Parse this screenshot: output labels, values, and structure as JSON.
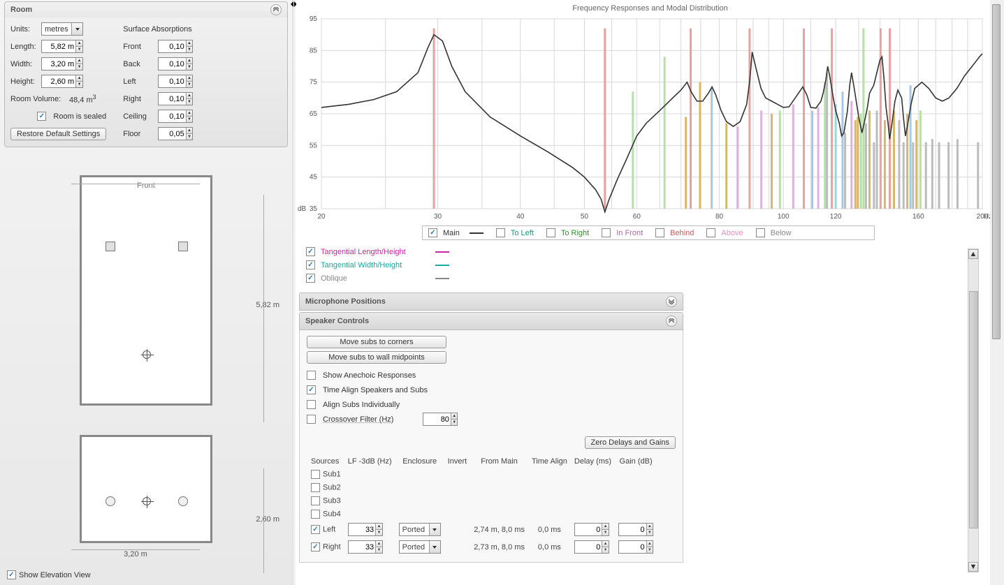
{
  "room_panel": {
    "title": "Room",
    "units_label": "Units:",
    "units_value": "metres",
    "length_label": "Length:",
    "length_value": "5,82 m",
    "width_label": "Width:",
    "width_value": "3,20 m",
    "height_label": "Height:",
    "height_value": "2,60 m",
    "volume_label": "Room Volume:",
    "volume_value": "48,4 m",
    "volume_sup": "3",
    "sealed_label": "Room is sealed",
    "restore_btn": "Restore Default Settings",
    "absorptions_label": "Surface Absorptions",
    "front_label": "Front",
    "front_val": "0,10",
    "back_label": "Back",
    "back_val": "0,10",
    "left_label": "Left",
    "left_val": "0,10",
    "right_label": "Right",
    "right_val": "0,10",
    "ceiling_label": "Ceiling",
    "ceiling_val": "0,10",
    "floor_label": "Floor",
    "floor_val": "0,05"
  },
  "diagram": {
    "top_width_label": "3,20 m",
    "right_length_label": "5,82 m",
    "bottom_width_label": "3,20 m",
    "elev_height_label": "2,60 m",
    "front_text": "Front"
  },
  "show_elev_label": "Show Elevation View",
  "chart": {
    "title": "Frequency Responses and Modal Distribution",
    "x_unit": "Hz",
    "y_unit": "dB",
    "xlim": [
      20,
      200
    ],
    "ylim": [
      35,
      95
    ],
    "yticks": [
      35,
      45,
      55,
      65,
      75,
      85,
      95
    ],
    "xticks_major": [
      20,
      30,
      40,
      50,
      60,
      80,
      100,
      120,
      160,
      200
    ],
    "response_curve": [
      [
        20,
        67
      ],
      [
        22,
        68
      ],
      [
        24,
        69.5
      ],
      [
        26,
        72
      ],
      [
        28,
        78
      ],
      [
        29,
        86
      ],
      [
        29.6,
        90
      ],
      [
        30.5,
        88
      ],
      [
        31.5,
        80
      ],
      [
        33,
        72
      ],
      [
        36,
        64
      ],
      [
        40,
        58
      ],
      [
        44,
        53
      ],
      [
        48,
        48
      ],
      [
        50,
        45
      ],
      [
        52,
        41
      ],
      [
        53,
        38
      ],
      [
        53.7,
        34
      ],
      [
        54.5,
        38
      ],
      [
        56,
        44
      ],
      [
        58,
        51
      ],
      [
        60,
        58
      ],
      [
        62,
        62
      ],
      [
        65,
        66
      ],
      [
        68,
        70
      ],
      [
        70,
        72.5
      ],
      [
        71.5,
        75
      ],
      [
        72.5,
        72
      ],
      [
        74,
        69
      ],
      [
        75.5,
        69
      ],
      [
        77,
        71.5
      ],
      [
        78,
        73.5
      ],
      [
        79,
        71
      ],
      [
        80.5,
        66
      ],
      [
        82,
        62.5
      ],
      [
        84,
        61
      ],
      [
        86,
        62.5
      ],
      [
        88,
        68
      ],
      [
        89,
        76
      ],
      [
        89.7,
        84.5
      ],
      [
        91,
        79
      ],
      [
        92.5,
        73
      ],
      [
        94,
        70
      ],
      [
        96,
        69
      ],
      [
        98,
        68
      ],
      [
        100,
        67
      ],
      [
        102,
        67.2
      ],
      [
        105,
        71
      ],
      [
        107,
        73.5
      ],
      [
        108.5,
        71
      ],
      [
        110,
        67
      ],
      [
        112,
        66.8
      ],
      [
        114,
        69
      ],
      [
        115,
        72
      ],
      [
        116,
        76
      ],
      [
        116.7,
        80
      ],
      [
        117.5,
        77
      ],
      [
        119,
        70
      ],
      [
        120,
        66
      ],
      [
        121.5,
        62
      ],
      [
        122.5,
        58
      ],
      [
        123.5,
        59
      ],
      [
        125,
        66
      ],
      [
        126,
        74
      ],
      [
        126.8,
        78
      ],
      [
        128,
        73
      ],
      [
        130,
        64
      ],
      [
        131.5,
        59
      ],
      [
        132.5,
        62
      ],
      [
        134,
        67
      ],
      [
        135,
        71.5
      ],
      [
        137,
        74
      ],
      [
        140,
        82
      ],
      [
        141,
        83
      ],
      [
        142,
        76
      ],
      [
        143,
        67
      ],
      [
        144,
        62
      ],
      [
        144.8,
        57
      ],
      [
        146,
        62
      ],
      [
        147.5,
        69
      ],
      [
        149,
        72.5
      ],
      [
        151,
        70
      ],
      [
        152,
        63.5
      ],
      [
        153,
        58
      ],
      [
        154,
        61
      ],
      [
        156,
        68
      ],
      [
        158,
        73
      ],
      [
        162,
        75
      ],
      [
        166,
        73
      ],
      [
        170,
        70
      ],
      [
        174,
        69
      ],
      [
        178,
        70
      ],
      [
        183,
        73
      ],
      [
        188,
        77
      ],
      [
        193,
        80
      ],
      [
        198,
        83
      ],
      [
        200,
        84
      ]
    ],
    "modal_bars": [
      {
        "x": 29.6,
        "y": 92,
        "color": "#e8a0a0"
      },
      {
        "x": 53.7,
        "y": 92,
        "color": "#e8a0a0"
      },
      {
        "x": 59.2,
        "y": 72,
        "color": "#b6e0a8"
      },
      {
        "x": 66.1,
        "y": 83,
        "color": "#b6e0a8"
      },
      {
        "x": 71.2,
        "y": 64,
        "color": "#d7b86a"
      },
      {
        "x": 72.4,
        "y": 92,
        "color": "#e8a0a0"
      },
      {
        "x": 74.8,
        "y": 75,
        "color": "#d7b86a"
      },
      {
        "x": 77.9,
        "y": 73,
        "color": "#a7c7e6"
      },
      {
        "x": 82.0,
        "y": 62,
        "color": "#d7b86a"
      },
      {
        "x": 85.3,
        "y": 61,
        "color": "#e0b0e0"
      },
      {
        "x": 88.9,
        "y": 92,
        "color": "#e8a0a0"
      },
      {
        "x": 92.6,
        "y": 66,
        "color": "#e0b0e0"
      },
      {
        "x": 96.0,
        "y": 65,
        "color": "#d7b86a"
      },
      {
        "x": 98.8,
        "y": 66,
        "color": "#b6e0a8"
      },
      {
        "x": 103.5,
        "y": 68,
        "color": "#e0b0e0"
      },
      {
        "x": 107.4,
        "y": 92,
        "color": "#e8a0a0"
      },
      {
        "x": 110.6,
        "y": 66,
        "color": "#a7c7e6"
      },
      {
        "x": 112.9,
        "y": 67,
        "color": "#e0b0e0"
      },
      {
        "x": 115.6,
        "y": 75,
        "color": "#b6e0a8"
      },
      {
        "x": 116.4,
        "y": 78,
        "color": "#bcbcbc"
      },
      {
        "x": 118.4,
        "y": 92,
        "color": "#e8a0a0"
      },
      {
        "x": 120.0,
        "y": 68,
        "color": "#9ad7d7"
      },
      {
        "x": 122.9,
        "y": 72,
        "color": "#a7c7e6"
      },
      {
        "x": 124.0,
        "y": 59,
        "color": "#bcbcbc"
      },
      {
        "x": 126.8,
        "y": 69,
        "color": "#e0b0e0"
      },
      {
        "x": 128.5,
        "y": 63,
        "color": "#d7b86a"
      },
      {
        "x": 129.6,
        "y": 64,
        "color": "#d7b86a"
      },
      {
        "x": 131.0,
        "y": 65,
        "color": "#b6e0a8"
      },
      {
        "x": 132.2,
        "y": 92,
        "color": "#b6e0a8"
      },
      {
        "x": 133.3,
        "y": 62,
        "color": "#bcbcbc"
      },
      {
        "x": 135.0,
        "y": 66,
        "color": "#d7b86a"
      },
      {
        "x": 137.1,
        "y": 56,
        "color": "#bcbcbc"
      },
      {
        "x": 138.5,
        "y": 66,
        "color": "#bcbcbc"
      },
      {
        "x": 140.3,
        "y": 92,
        "color": "#e8a0a0"
      },
      {
        "x": 142.4,
        "y": 63,
        "color": "#d7b86a"
      },
      {
        "x": 144.9,
        "y": 92,
        "color": "#e8a0a0"
      },
      {
        "x": 147.0,
        "y": 66,
        "color": "#d7b86a"
      },
      {
        "x": 149.7,
        "y": 63,
        "color": "#bcbcbc"
      },
      {
        "x": 152.0,
        "y": 56,
        "color": "#bcbcbc"
      },
      {
        "x": 154.0,
        "y": 65,
        "color": "#d7b86a"
      },
      {
        "x": 155.7,
        "y": 74,
        "color": "#a7c7e6"
      },
      {
        "x": 157.1,
        "y": 56,
        "color": "#bcbcbc"
      },
      {
        "x": 159.0,
        "y": 63,
        "color": "#d7b86a"
      },
      {
        "x": 161.2,
        "y": 66,
        "color": "#b6e0a8"
      },
      {
        "x": 164.3,
        "y": 56,
        "color": "#bcbcbc"
      },
      {
        "x": 168.0,
        "y": 57,
        "color": "#bcbcbc"
      },
      {
        "x": 172.0,
        "y": 56,
        "color": "#bcbcbc"
      },
      {
        "x": 177.8,
        "y": 56,
        "color": "#bcbcbc"
      },
      {
        "x": 183.4,
        "y": 57,
        "color": "#bcbcbc"
      },
      {
        "x": 197.0,
        "y": 56,
        "color": "#bcbcbc"
      }
    ],
    "curve_color": "#333333",
    "grid_color": "#d8d8d8",
    "background": "#ffffff"
  },
  "main_legend": {
    "items": [
      {
        "label": "Main",
        "color": "#333333",
        "checked": true,
        "style": "line"
      },
      {
        "label": "To Left",
        "color": "#16947a",
        "checked": false
      },
      {
        "label": "To Right",
        "color": "#2f8f2f",
        "checked": false
      },
      {
        "label": "In Front",
        "color": "#b06aa4",
        "checked": false
      },
      {
        "label": "Behind",
        "color": "#c75b5b",
        "checked": false
      },
      {
        "label": "Above",
        "color": "#e48fc0",
        "checked": false
      },
      {
        "label": "Below",
        "color": "#888888",
        "checked": false
      }
    ]
  },
  "ext_legend": {
    "items": [
      {
        "label": "Tangential Length/Height",
        "color": "#c726a4",
        "checked": true
      },
      {
        "label": "Tangential Width/Height",
        "color": "#18a9a1",
        "checked": true
      },
      {
        "label": "Oblique",
        "color": "#888888",
        "checked": true
      }
    ]
  },
  "mic_section_title": "Microphone Positions",
  "speaker_section": {
    "title": "Speaker Controls",
    "move_corners_btn": "Move subs to corners",
    "move_midpoints_btn": "Move subs to wall midpoints",
    "anechoic_label": "Show Anechoic Responses",
    "time_align_label": "Time Align Speakers and Subs",
    "align_indiv_label": "Align Subs Individually",
    "crossover_label": "Crossover Filter (Hz)",
    "crossover_val": "80",
    "zero_btn": "Zero Delays and Gains",
    "cols": {
      "sources": "Sources",
      "lf": "LF -3dB (Hz)",
      "enc": "Enclosure",
      "inv": "Invert",
      "from_main": "From Main",
      "ta": "Time Align",
      "delay": "Delay (ms)",
      "gain": "Gain (dB)"
    },
    "rows": [
      {
        "name": "Sub1",
        "checked": false
      },
      {
        "name": "Sub2",
        "checked": false
      },
      {
        "name": "Sub3",
        "checked": false
      },
      {
        "name": "Sub4",
        "checked": false
      },
      {
        "name": "Left",
        "checked": true,
        "lf": "33",
        "enc": "Ported",
        "from_main": "2,74 m, 8,0 ms",
        "ta": "0,0 ms",
        "delay": "0",
        "gain": "0"
      },
      {
        "name": "Right",
        "checked": true,
        "lf": "33",
        "enc": "Ported",
        "from_main": "2,73 m, 8,0 ms",
        "ta": "0,0 ms",
        "delay": "0",
        "gain": "0"
      }
    ]
  }
}
